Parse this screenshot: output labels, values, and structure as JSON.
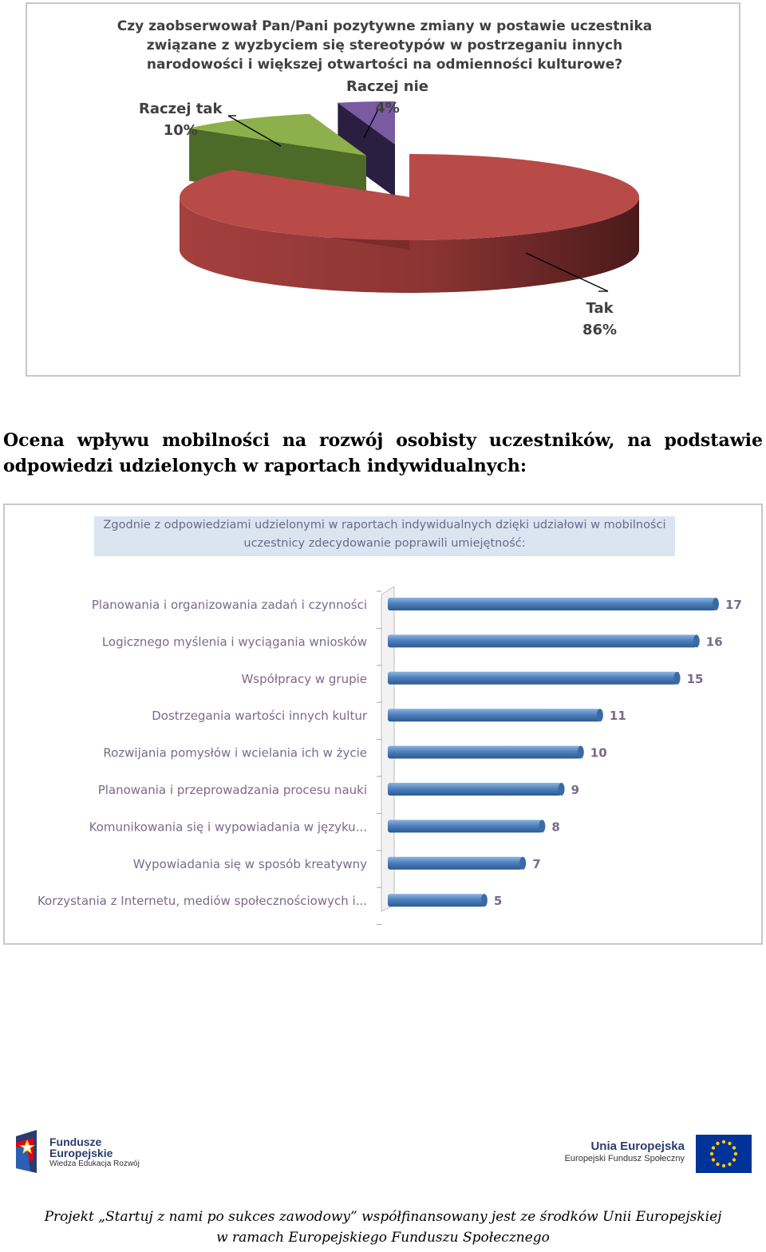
{
  "pie_chart": {
    "title_lines": [
      "Czy zaobserwował Pan/Pani pozytywne zmiany w postawie uczestnika",
      "związane z wyzbyciem się stereotypów w postrzeganiu innych",
      "narodowości i większej otwartości na odmienności kulturowe?"
    ],
    "slices": [
      {
        "label": "Tak",
        "value_label": "86%"
      },
      {
        "label": "Raczej tak",
        "value_label": "10%"
      },
      {
        "label": "Raczej nie",
        "value_label": "4%"
      }
    ]
  },
  "section_heading": {
    "line1": "Ocena wpływu mobilności na rozwój osobisty uczestników, na podstawie",
    "line2": "odpowiedzi udzielonych w raportach indywidualnych:"
  },
  "bar_chart": {
    "title_lines": [
      "Zgodnie z odpowiedziami udzielonymi w raportach indywidualnych dzięki udziałowi w mobilności",
      "uczestnicy zdecydowanie poprawili umiejętność:"
    ]
  },
  "chart_data": [
    {
      "type": "pie",
      "title": "Czy zaobserwował Pan/Pani pozytywne zmiany w postawie uczestnika związane z wyzbyciem się stereotypów w postrzeganiu innych narodowości i większej otwartości na odmienności kulturowe?",
      "categories": [
        "Tak",
        "Raczej tak",
        "Raczej nie"
      ],
      "values": [
        86,
        10,
        4
      ],
      "unit": "%",
      "colors": [
        "#b84a48",
        "#8eb04c",
        "#7a5aa0"
      ],
      "style": "3d-exploded"
    },
    {
      "type": "bar",
      "orientation": "horizontal",
      "title": "Zgodnie z odpowiedziami udzielonymi w raportach indywidualnych dzięki udziałowi w mobilności uczestnicy zdecydowanie poprawili umiejętność:",
      "categories": [
        "Planowania i organizowania zadań i czynności",
        "Logicznego myślenia i wyciągania wniosków",
        "Współpracy w grupie",
        "Dostrzegania wartości innych kultur",
        "Rozwijania pomysłów i wcielania ich w życie",
        "Planowania i przeprowadzania procesu nauki",
        "Komunikowania się i wypowiadania w języku...",
        "Wypowiadania się w sposób kreatywny",
        "Korzystania z Internetu, mediów społecznościowych i..."
      ],
      "values": [
        17,
        16,
        15,
        11,
        10,
        9,
        8,
        7,
        5
      ],
      "xlim": [
        0,
        17
      ],
      "color": "#4f81bd",
      "data_labels": true,
      "grid": false
    }
  ],
  "footer": {
    "left_logo": {
      "name": "Fundusze",
      "name2": "Europejskie",
      "sub": "Wiedza Edukacja Rozwój"
    },
    "right_logo": {
      "name": "Unia Europejska",
      "sub": "Europejski Fundusz Społeczny"
    },
    "note_line1": "Projekt „Startuj z nami po sukces zawodowy” współfinansowany jest ze środków Unii Europejskiej",
    "note_line2": "w ramach Europejskiego Funduszu Społecznego"
  }
}
